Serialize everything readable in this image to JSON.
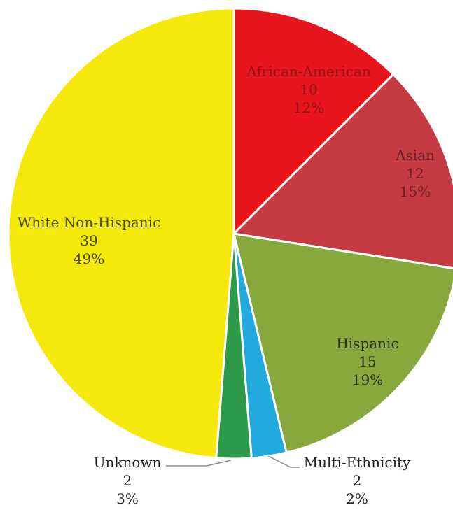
{
  "chart_data": {
    "type": "pie",
    "start_angle_deg": 0,
    "direction": "clockwise",
    "slices": [
      {
        "name": "African-American",
        "value": 10,
        "percent": "12%",
        "color": "#e8141e",
        "label_color": "#8c1818"
      },
      {
        "name": "Asian",
        "value": 12,
        "percent": "15%",
        "color": "#c63a44",
        "label_color": "#6e1e26"
      },
      {
        "name": "Hispanic",
        "value": 15,
        "percent": "19%",
        "color": "#87a83c",
        "label_color": "#26321c"
      },
      {
        "name": "Multi-Ethnicity",
        "value": 2,
        "percent": "2%",
        "color": "#22a9dd",
        "label_color": "#222222"
      },
      {
        "name": "Unknown",
        "value": 2,
        "percent": "3%",
        "color": "#2c9a48",
        "label_color": "#222222"
      },
      {
        "name": "White Non-Hispanic",
        "value": 39,
        "percent": "49%",
        "color": "#f5e90c",
        "label_color": "#4a4a24"
      }
    ]
  }
}
